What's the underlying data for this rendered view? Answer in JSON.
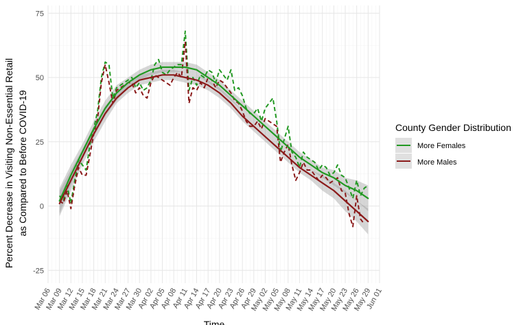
{
  "chart_data": {
    "type": "line",
    "xlabel": "Time",
    "ylabel_line1": "Percent Decrease in Visiting Non-Essential Retail",
    "ylabel_line2": "as Compared to Before COVID-19",
    "ylim": [
      -30,
      78
    ],
    "yticks": [
      -25,
      0,
      25,
      50,
      75
    ],
    "xlim": [
      "2020-03-06",
      "2020-06-01"
    ],
    "xticks": [
      "Mar 06",
      "Mar 09",
      "Mar 12",
      "Mar 15",
      "Mar 18",
      "Mar 21",
      "Mar 24",
      "Mar 27",
      "Mar 30",
      "Apr 02",
      "Apr 05",
      "Apr 08",
      "Apr 11",
      "Apr 14",
      "Apr 17",
      "Apr 20",
      "Apr 23",
      "Apr 26",
      "Apr 29",
      "May 02",
      "May 05",
      "May 08",
      "May 11",
      "May 14",
      "May 17",
      "May 20",
      "May 23",
      "May 26",
      "May 29",
      "Jun 01"
    ],
    "grid": true,
    "legend": {
      "title": "County Gender Distribution",
      "position": "right"
    },
    "series": [
      {
        "name": "More Females",
        "color": "#229922",
        "x": [
          "2020-03-09",
          "2020-03-10",
          "2020-03-11",
          "2020-03-12",
          "2020-03-13",
          "2020-03-14",
          "2020-03-15",
          "2020-03-16",
          "2020-03-17",
          "2020-03-18",
          "2020-03-19",
          "2020-03-20",
          "2020-03-21",
          "2020-03-22",
          "2020-03-23",
          "2020-03-24",
          "2020-03-25",
          "2020-03-26",
          "2020-03-27",
          "2020-03-28",
          "2020-03-29",
          "2020-03-30",
          "2020-03-31",
          "2020-04-01",
          "2020-04-02",
          "2020-04-03",
          "2020-04-04",
          "2020-04-05",
          "2020-04-06",
          "2020-04-07",
          "2020-04-08",
          "2020-04-09",
          "2020-04-10",
          "2020-04-11",
          "2020-04-12",
          "2020-04-13",
          "2020-04-14",
          "2020-04-15",
          "2020-04-16",
          "2020-04-17",
          "2020-04-18",
          "2020-04-19",
          "2020-04-20",
          "2020-04-21",
          "2020-04-22",
          "2020-04-23",
          "2020-04-24",
          "2020-04-25",
          "2020-04-26",
          "2020-04-27",
          "2020-04-28",
          "2020-04-29",
          "2020-04-30",
          "2020-05-01",
          "2020-05-02",
          "2020-05-03",
          "2020-05-04",
          "2020-05-05",
          "2020-05-06",
          "2020-05-07",
          "2020-05-08",
          "2020-05-09",
          "2020-05-10",
          "2020-05-11",
          "2020-05-12",
          "2020-05-13",
          "2020-05-14",
          "2020-05-15",
          "2020-05-16",
          "2020-05-17",
          "2020-05-18",
          "2020-05-19",
          "2020-05-20",
          "2020-05-21",
          "2020-05-22",
          "2020-05-23",
          "2020-05-24",
          "2020-05-25",
          "2020-05-26",
          "2020-05-27",
          "2020-05-28",
          "2020-05-29"
        ],
        "values": [
          4,
          2,
          8,
          1,
          10,
          18,
          16,
          14,
          24,
          30,
          37,
          50,
          56,
          55,
          42,
          46,
          47,
          48,
          49,
          50,
          46,
          48,
          45,
          46,
          49,
          55,
          57,
          52,
          51,
          53,
          54,
          55,
          55,
          68,
          45,
          50,
          47,
          51,
          50,
          53,
          52,
          48,
          53,
          51,
          49,
          53,
          45,
          46,
          43,
          38,
          36,
          36,
          38,
          33,
          38,
          40,
          42,
          33,
          21,
          26,
          31,
          21,
          19,
          15,
          21,
          19,
          18,
          17,
          14,
          16,
          15,
          12,
          13,
          16,
          12,
          11,
          7,
          3,
          10,
          4,
          7,
          8
        ]
      },
      {
        "name": "More Males",
        "color": "#8b1a1a",
        "x": [
          "2020-03-09",
          "2020-03-10",
          "2020-03-11",
          "2020-03-12",
          "2020-03-13",
          "2020-03-14",
          "2020-03-15",
          "2020-03-16",
          "2020-03-17",
          "2020-03-18",
          "2020-03-19",
          "2020-03-20",
          "2020-03-21",
          "2020-03-22",
          "2020-03-23",
          "2020-03-24",
          "2020-03-25",
          "2020-03-26",
          "2020-03-27",
          "2020-03-28",
          "2020-03-29",
          "2020-03-30",
          "2020-03-31",
          "2020-04-01",
          "2020-04-02",
          "2020-04-03",
          "2020-04-04",
          "2020-04-05",
          "2020-04-06",
          "2020-04-07",
          "2020-04-08",
          "2020-04-09",
          "2020-04-10",
          "2020-04-11",
          "2020-04-12",
          "2020-04-13",
          "2020-04-14",
          "2020-04-15",
          "2020-04-16",
          "2020-04-17",
          "2020-04-18",
          "2020-04-19",
          "2020-04-20",
          "2020-04-21",
          "2020-04-22",
          "2020-04-23",
          "2020-04-24",
          "2020-04-25",
          "2020-04-26",
          "2020-04-27",
          "2020-04-28",
          "2020-04-29",
          "2020-04-30",
          "2020-05-01",
          "2020-05-02",
          "2020-05-03",
          "2020-05-04",
          "2020-05-05",
          "2020-05-06",
          "2020-05-07",
          "2020-05-08",
          "2020-05-09",
          "2020-05-10",
          "2020-05-11",
          "2020-05-12",
          "2020-05-13",
          "2020-05-14",
          "2020-05-15",
          "2020-05-16",
          "2020-05-17",
          "2020-05-18",
          "2020-05-19",
          "2020-05-20",
          "2020-05-21",
          "2020-05-22",
          "2020-05-23",
          "2020-05-24",
          "2020-05-25",
          "2020-05-26",
          "2020-05-27",
          "2020-05-28"
        ],
        "values": [
          2,
          1,
          6,
          -1,
          8,
          15,
          12,
          12,
          20,
          28,
          34,
          48,
          55,
          48,
          40,
          45,
          46,
          47,
          48,
          48,
          44,
          46,
          43,
          42,
          48,
          51,
          50,
          49,
          48,
          47,
          50,
          52,
          50,
          64,
          40,
          46,
          45,
          48,
          46,
          50,
          49,
          46,
          49,
          48,
          46,
          44,
          41,
          40,
          37,
          33,
          31,
          31,
          33,
          30,
          34,
          33,
          32,
          31,
          17,
          21,
          24,
          16,
          10,
          13,
          17,
          14,
          14,
          12,
          10,
          12,
          11,
          9,
          10,
          11,
          6,
          5,
          -3,
          -8,
          4,
          -5,
          -7
        ]
      }
    ],
    "smooth": [
      {
        "name": "More Females",
        "x": [
          "2020-03-09",
          "2020-03-12",
          "2020-03-15",
          "2020-03-18",
          "2020-03-21",
          "2020-03-24",
          "2020-03-27",
          "2020-03-30",
          "2020-04-02",
          "2020-04-05",
          "2020-04-08",
          "2020-04-11",
          "2020-04-14",
          "2020-04-17",
          "2020-04-20",
          "2020-04-23",
          "2020-04-26",
          "2020-04-29",
          "2020-05-02",
          "2020-05-05",
          "2020-05-08",
          "2020-05-11",
          "2020-05-14",
          "2020-05-17",
          "2020-05-20",
          "2020-05-23",
          "2020-05-26",
          "2020-05-29"
        ],
        "values": [
          2,
          12,
          21,
          30,
          38,
          44,
          48,
          51,
          53,
          54,
          54,
          54,
          53,
          50,
          47,
          43,
          39,
          35,
          31,
          27,
          23,
          19,
          16,
          13,
          11,
          8,
          6,
          3
        ],
        "lower": [
          -3,
          8,
          18,
          27,
          35,
          41,
          46,
          49,
          51,
          52,
          52,
          52,
          51,
          48,
          45,
          41,
          37,
          33,
          29,
          25,
          21,
          17,
          14,
          11,
          8,
          5,
          2,
          -2
        ],
        "upper": [
          7,
          16,
          24,
          33,
          41,
          47,
          50,
          53,
          55,
          56,
          56,
          56,
          55,
          52,
          49,
          45,
          41,
          37,
          33,
          29,
          25,
          21,
          18,
          15,
          14,
          11,
          10,
          8
        ]
      },
      {
        "name": "More Males",
        "x": [
          "2020-03-09",
          "2020-03-12",
          "2020-03-15",
          "2020-03-18",
          "2020-03-21",
          "2020-03-24",
          "2020-03-27",
          "2020-03-30",
          "2020-04-02",
          "2020-04-05",
          "2020-04-08",
          "2020-04-11",
          "2020-04-14",
          "2020-04-17",
          "2020-04-20",
          "2020-04-23",
          "2020-04-26",
          "2020-04-29",
          "2020-05-02",
          "2020-05-05",
          "2020-05-08",
          "2020-05-11",
          "2020-05-14",
          "2020-05-17",
          "2020-05-20",
          "2020-05-23",
          "2020-05-26",
          "2020-05-29"
        ],
        "values": [
          1,
          10,
          19,
          28,
          36,
          42,
          46,
          49,
          50,
          51,
          51,
          50,
          49,
          47,
          44,
          40,
          35,
          31,
          27,
          23,
          19,
          15,
          12,
          9,
          6,
          2,
          -2,
          -6
        ],
        "lower": [
          -4,
          6,
          16,
          25,
          33,
          40,
          44,
          47,
          48,
          49,
          49,
          48,
          47,
          45,
          42,
          38,
          33,
          29,
          25,
          21,
          17,
          13,
          10,
          6,
          3,
          -2,
          -6,
          -11
        ],
        "upper": [
          6,
          14,
          22,
          31,
          39,
          44,
          48,
          51,
          52,
          53,
          53,
          52,
          51,
          49,
          46,
          42,
          37,
          33,
          29,
          25,
          21,
          17,
          14,
          12,
          9,
          6,
          2,
          -1
        ]
      }
    ]
  }
}
